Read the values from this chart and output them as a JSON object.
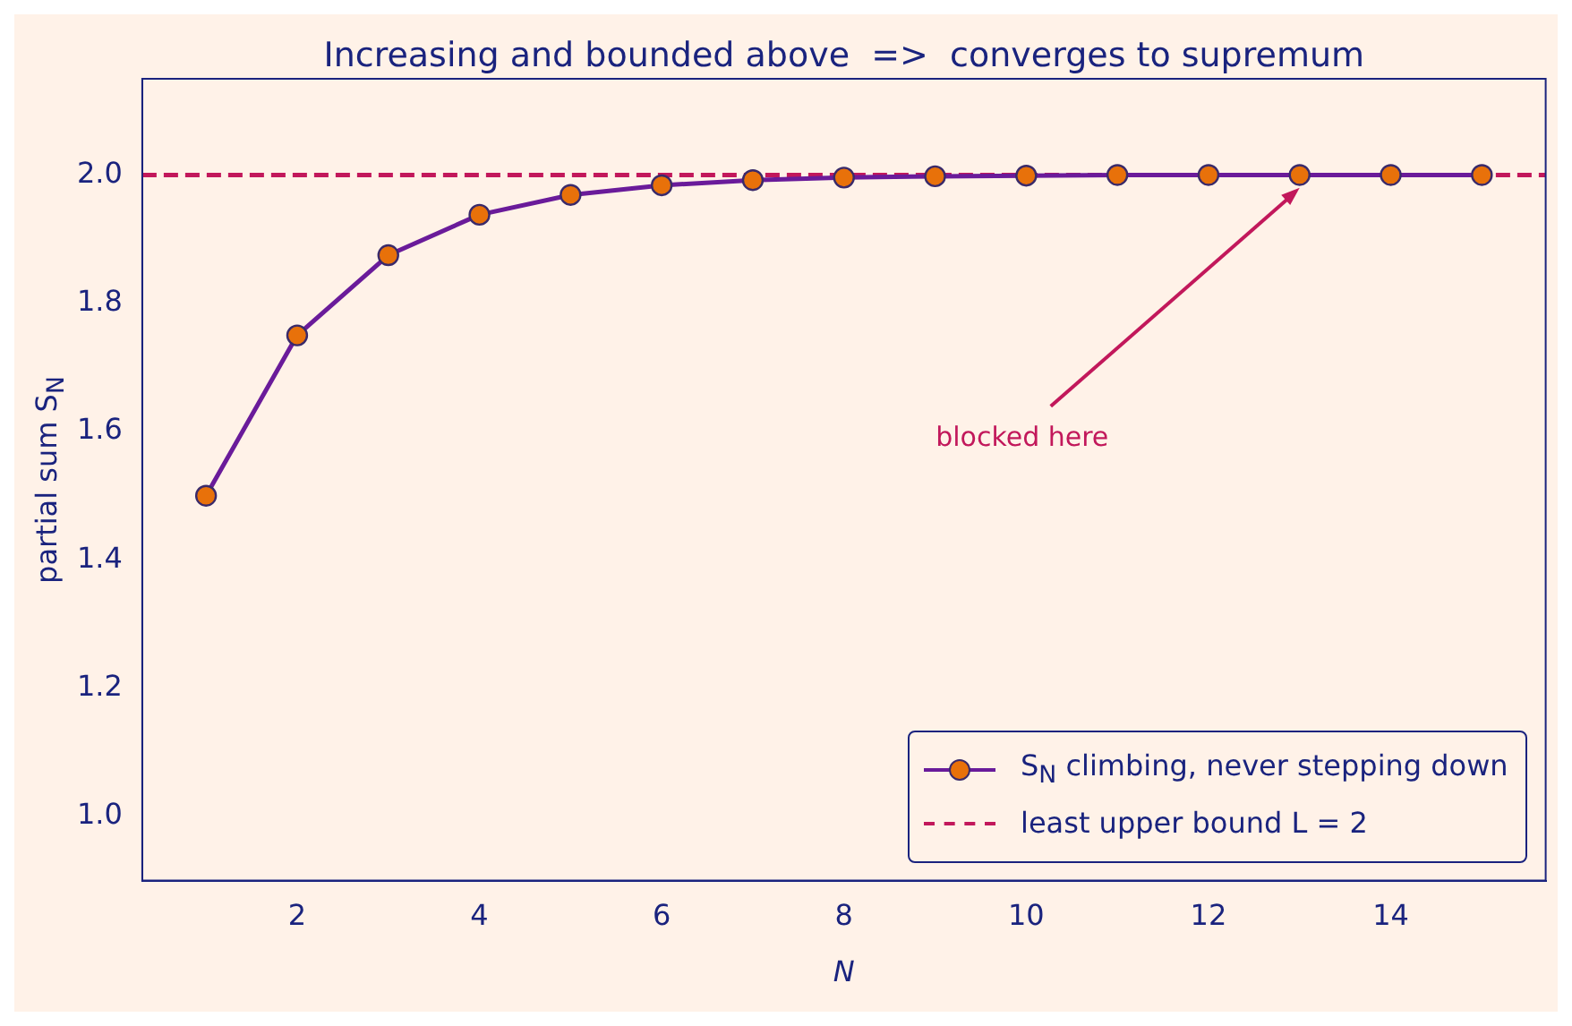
{
  "chart_data": {
    "type": "line",
    "title": "Increasing and bounded above  =>  converges to supremum",
    "xlabel": "N",
    "ylabel": "partial sum S$_{N}$",
    "x": [
      1,
      2,
      3,
      4,
      5,
      6,
      7,
      8,
      9,
      10,
      11,
      12,
      13,
      14,
      15
    ],
    "series": [
      {
        "name": "S$_{N}$ climbing, never stepping down",
        "color": "#6a1b9a",
        "values": [
          1.5,
          1.75,
          1.875,
          1.938,
          1.969,
          1.984,
          1.992,
          1.996,
          1.998,
          1.999,
          2.0,
          2.0,
          2.0,
          2.0,
          2.0
        ]
      }
    ],
    "xlim": [
      0.3,
      15.7
    ],
    "xticks": [
      2,
      4,
      6,
      8,
      10,
      12,
      14
    ],
    "ylim": [
      0.9,
      2.15
    ],
    "yticks": [
      {
        "value": 1,
        "label": "1.0"
      },
      1.2,
      1.4,
      1.6,
      1.8,
      {
        "value": 2,
        "label": "2.0"
      }
    ],
    "ref_lines": [
      {
        "axis": "y",
        "value": 2,
        "label": "least upper bound L = 2",
        "color": "#c2185b",
        "line_style": "dashed"
      }
    ],
    "annotations": [
      {
        "text": "blocked here",
        "x": 13,
        "y": 1.98
      }
    ],
    "marker": "circle",
    "line_style": "solid",
    "grid": false,
    "legend": "bottom right"
  }
}
